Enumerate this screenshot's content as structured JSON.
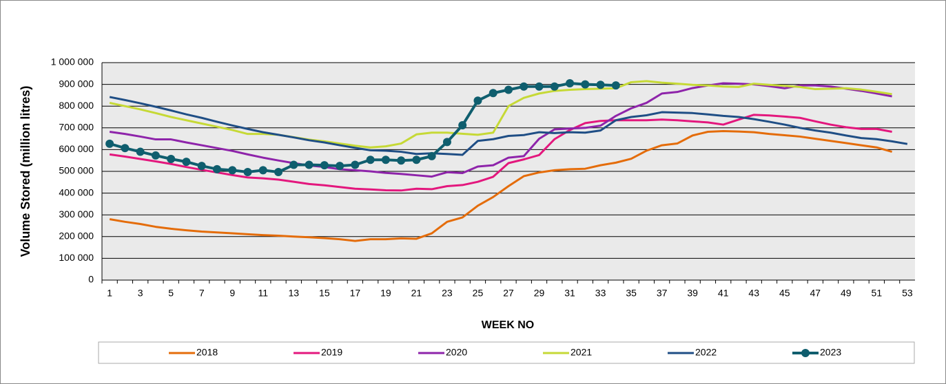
{
  "chart_data": {
    "type": "line",
    "y_label": "Volume Stored (million litres)",
    "x_label": "WEEK NO",
    "categories": [
      "1",
      null,
      "3",
      null,
      "5",
      null,
      "7",
      null,
      "9",
      null,
      "11",
      null,
      "13",
      null,
      "15",
      null,
      "17",
      null,
      "19",
      null,
      "21",
      null,
      "23",
      null,
      "25",
      null,
      "27",
      null,
      "29",
      null,
      "31",
      null,
      "33",
      null,
      "35",
      null,
      "37",
      null,
      "39",
      null,
      "41",
      null,
      "43",
      null,
      "45",
      null,
      "47",
      null,
      "49",
      null,
      "51",
      null,
      "53"
    ],
    "ylim": [
      0,
      1000000
    ],
    "yticks": [
      0,
      {
        "value": 100000,
        "label": "100 000"
      },
      {
        "value": 200000,
        "label": "200 000"
      },
      {
        "value": 300000,
        "label": "300 000"
      },
      {
        "value": 400000,
        "label": "400 000"
      },
      {
        "value": 500000,
        "label": "500 000"
      },
      {
        "value": 600000,
        "label": "600 000"
      },
      {
        "value": 700000,
        "label": "700 000"
      },
      {
        "value": 800000,
        "label": "800 000"
      },
      {
        "value": 900000,
        "label": "900 000"
      },
      {
        "value": 1000000,
        "label": "1 000 000"
      }
    ],
    "grid": true,
    "legend": "bottom",
    "series": [
      {
        "name": "2018",
        "color": "#e46c0a",
        "values": [
          280000,
          268000,
          258000,
          245000,
          236000,
          229000,
          223000,
          219000,
          215000,
          211000,
          207000,
          204000,
          200000,
          197000,
          193000,
          188000,
          180000,
          188000,
          188000,
          192000,
          190000,
          215000,
          268000,
          288000,
          342000,
          382000,
          432000,
          478000,
          495000,
          505000,
          510000,
          512000,
          528000,
          540000,
          558000,
          595000,
          620000,
          628000,
          665000,
          682000,
          685000,
          683000,
          680000,
          672000,
          666000,
          660000,
          650000,
          640000,
          630000,
          620000,
          610000,
          590000,
          null
        ]
      },
      {
        "name": "2019",
        "color": "#e3177d",
        "values": [
          578000,
          568000,
          557000,
          546000,
          534000,
          520000,
          507000,
          495000,
          483000,
          472000,
          468000,
          462000,
          452000,
          442000,
          436000,
          428000,
          420000,
          417000,
          413000,
          412000,
          420000,
          418000,
          432000,
          437000,
          452000,
          475000,
          538000,
          555000,
          575000,
          648000,
          690000,
          722000,
          732000,
          735000,
          735000,
          735000,
          738000,
          735000,
          730000,
          725000,
          715000,
          738000,
          760000,
          757000,
          752000,
          746000,
          730000,
          715000,
          703000,
          695000,
          695000,
          682000,
          null
        ]
      },
      {
        "name": "2020",
        "color": "#8e24aa",
        "values": [
          682000,
          672000,
          660000,
          647000,
          647000,
          633000,
          620000,
          607000,
          594000,
          578000,
          563000,
          550000,
          538000,
          527000,
          520000,
          510000,
          505000,
          500000,
          493000,
          488000,
          482000,
          476000,
          496000,
          492000,
          522000,
          528000,
          563000,
          570000,
          650000,
          693000,
          697000,
          700000,
          710000,
          755000,
          790000,
          815000,
          858000,
          865000,
          883000,
          895000,
          905000,
          903000,
          900000,
          892000,
          882000,
          895000,
          895000,
          890000,
          880000,
          870000,
          858000,
          845000,
          null
        ]
      },
      {
        "name": "2021",
        "color": "#c6d936",
        "values": [
          815000,
          800000,
          785000,
          768000,
          750000,
          735000,
          720000,
          705000,
          690000,
          672000,
          672000,
          668000,
          657000,
          646000,
          638000,
          628000,
          618000,
          610000,
          615000,
          628000,
          670000,
          678000,
          678000,
          673000,
          668000,
          678000,
          800000,
          838000,
          858000,
          870000,
          875000,
          878000,
          880000,
          882000,
          910000,
          915000,
          908000,
          903000,
          898000,
          895000,
          890000,
          888000,
          903000,
          898000,
          893000,
          888000,
          878000,
          880000,
          882000,
          876000,
          866000,
          855000,
          null
        ]
      },
      {
        "name": "2022",
        "color": "#1f4e85",
        "values": [
          842000,
          828000,
          813000,
          797000,
          780000,
          762000,
          746000,
          728000,
          711000,
          695000,
          680000,
          668000,
          656000,
          643000,
          633000,
          620000,
          608000,
          597000,
          595000,
          590000,
          580000,
          583000,
          580000,
          576000,
          640000,
          648000,
          663000,
          667000,
          680000,
          676000,
          680000,
          678000,
          688000,
          735000,
          750000,
          758000,
          772000,
          770000,
          768000,
          762000,
          755000,
          750000,
          740000,
          728000,
          715000,
          700000,
          688000,
          678000,
          665000,
          653000,
          648000,
          638000,
          626000
        ]
      },
      {
        "name": "2023",
        "color": "#0f5e6e",
        "marker": "circle",
        "values": [
          627000,
          607000,
          590000,
          573000,
          557000,
          544000,
          525000,
          510000,
          505000,
          497000,
          505000,
          497000,
          530000,
          530000,
          528000,
          525000,
          530000,
          553000,
          553000,
          550000,
          553000,
          570000,
          635000,
          712000,
          825000,
          860000,
          875000,
          890000,
          890000,
          890000,
          905000,
          900000,
          898000,
          895000,
          null,
          null,
          null,
          null,
          null,
          null,
          null,
          null,
          null,
          null,
          null,
          null,
          null,
          null,
          null,
          null,
          null,
          null,
          null
        ]
      }
    ]
  }
}
